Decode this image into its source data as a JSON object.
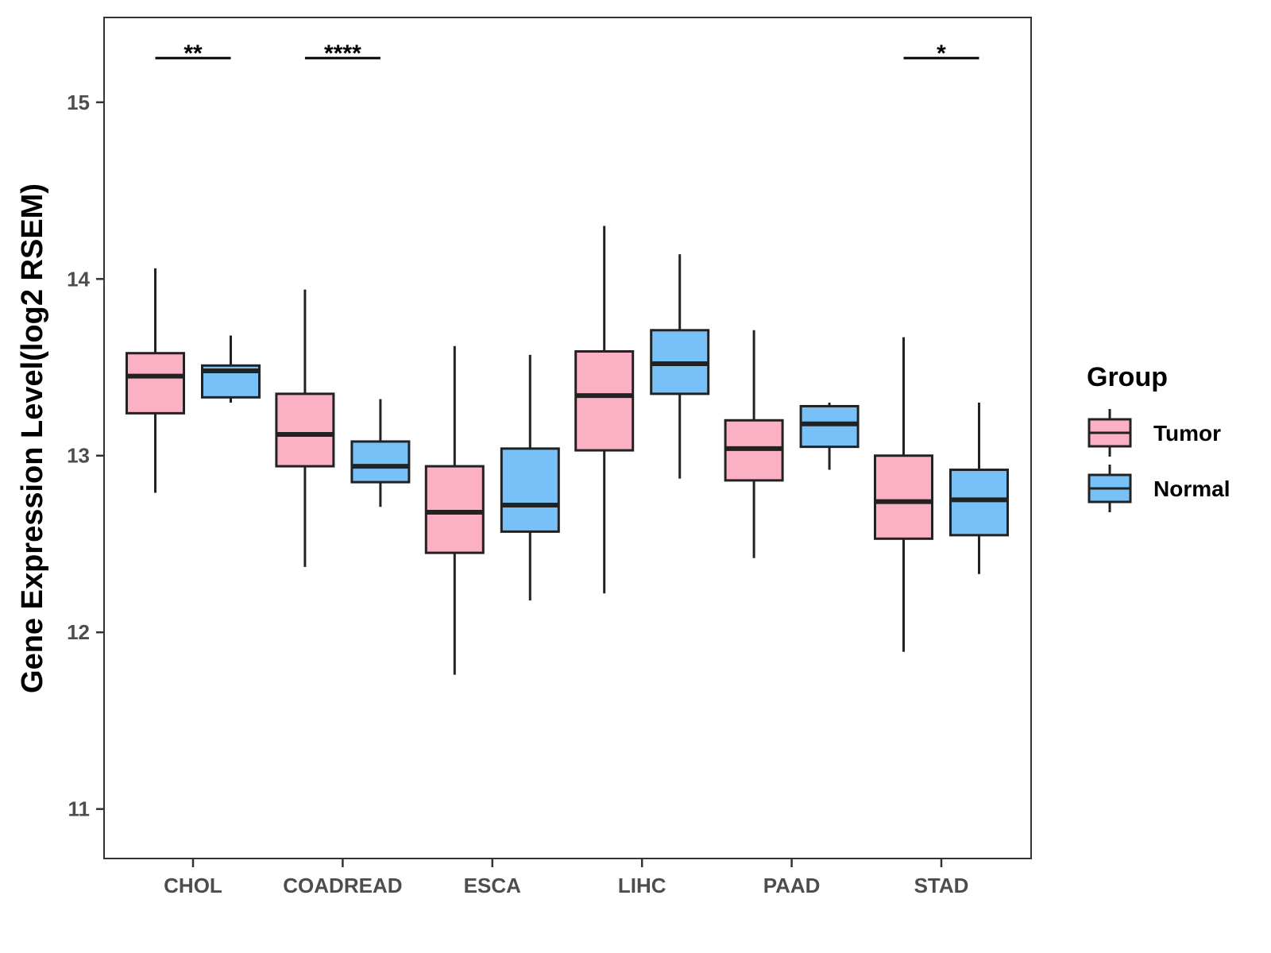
{
  "chart_data": {
    "type": "boxplot",
    "title": "",
    "xlabel": "",
    "ylabel": "Gene Expression Level(log2 RSEM)",
    "ylim": [
      10.72,
      15.48
    ],
    "yticks": [
      11,
      12,
      13,
      14,
      15
    ],
    "grid": false,
    "legend": {
      "title": "Group",
      "position": "right",
      "entries": [
        {
          "name": "Tumor",
          "color": "#FBB1C3"
        },
        {
          "name": "Normal",
          "color": "#78C1F8"
        }
      ]
    },
    "categories": [
      "CHOL",
      "COADREAD",
      "ESCA",
      "LIHC",
      "PAAD",
      "STAD"
    ],
    "series": [
      {
        "name": "Tumor",
        "color": "#FBB1C3",
        "boxes": [
          {
            "min": 12.79,
            "q1": 13.24,
            "median": 13.45,
            "q3": 13.58,
            "max": 14.06
          },
          {
            "min": 12.37,
            "q1": 12.94,
            "median": 13.12,
            "q3": 13.35,
            "max": 13.94
          },
          {
            "min": 11.76,
            "q1": 12.45,
            "median": 12.68,
            "q3": 12.94,
            "max": 13.62
          },
          {
            "min": 12.22,
            "q1": 13.03,
            "median": 13.34,
            "q3": 13.59,
            "max": 14.3
          },
          {
            "min": 12.42,
            "q1": 12.86,
            "median": 13.04,
            "q3": 13.2,
            "max": 13.71
          },
          {
            "min": 11.89,
            "q1": 12.53,
            "median": 12.74,
            "q3": 13.0,
            "max": 13.67
          }
        ]
      },
      {
        "name": "Normal",
        "color": "#78C1F8",
        "boxes": [
          {
            "min": 13.3,
            "q1": 13.33,
            "median": 13.48,
            "q3": 13.51,
            "max": 13.68
          },
          {
            "min": 12.71,
            "q1": 12.85,
            "median": 12.94,
            "q3": 13.08,
            "max": 13.32
          },
          {
            "min": 12.18,
            "q1": 12.57,
            "median": 12.72,
            "q3": 13.04,
            "max": 13.57
          },
          {
            "min": 12.87,
            "q1": 13.35,
            "median": 13.52,
            "q3": 13.71,
            "max": 14.14
          },
          {
            "min": 12.92,
            "q1": 13.05,
            "median": 13.18,
            "q3": 13.28,
            "max": 13.3
          },
          {
            "min": 12.33,
            "q1": 12.55,
            "median": 12.75,
            "q3": 12.92,
            "max": 13.3
          }
        ]
      }
    ],
    "annotations": [
      {
        "category": "CHOL",
        "label": "**",
        "y": 15.25
      },
      {
        "category": "COADREAD",
        "label": "****",
        "y": 15.25
      },
      {
        "category": "STAD",
        "label": "*",
        "y": 15.25
      }
    ]
  }
}
